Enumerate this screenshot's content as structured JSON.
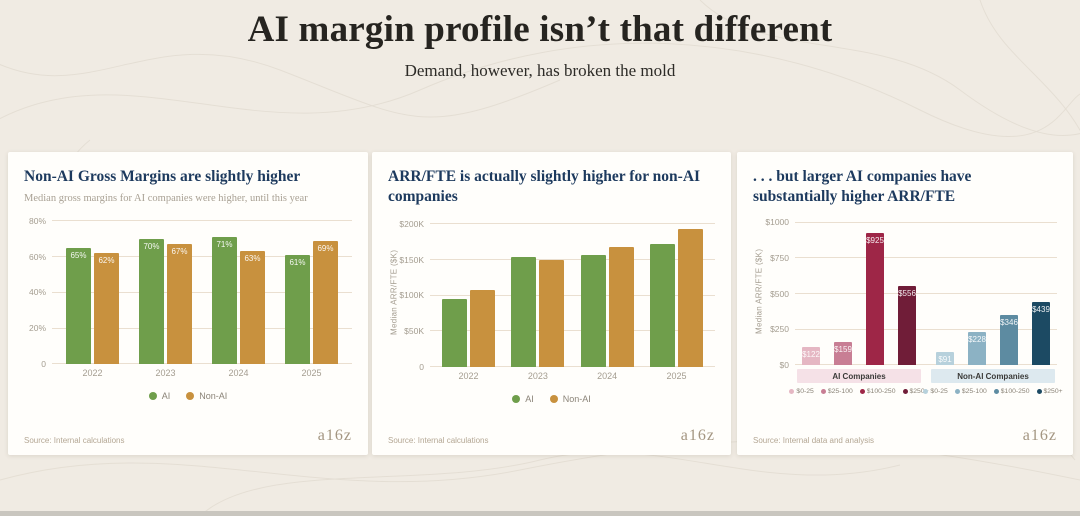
{
  "header": {
    "title": "AI margin profile isn’t that different",
    "subtitle": "Demand, however, has broken the mold"
  },
  "cards": [
    {
      "title": "Non-AI Gross Margins are slightly higher",
      "subtitle": "Median gross margins for AI companies were higher, until this year",
      "source": "Source: Internal calculations",
      "logo": "a16z"
    },
    {
      "title": "ARR/FTE is actually slightly higher for non-AI companies",
      "source": "Source: Internal calculations",
      "logo": "a16z"
    },
    {
      "title": ". . . but larger AI companies have substantially higher ARR/FTE",
      "source": "Source: Internal data and analysis",
      "logo": "a16z"
    }
  ],
  "chart_data": [
    {
      "type": "bar",
      "title": "Non-AI Gross Margins are slightly higher",
      "categories": [
        "2022",
        "2023",
        "2024",
        "2025"
      ],
      "series": [
        {
          "name": "AI",
          "color": "#6f9e4b",
          "values": [
            65,
            70,
            71,
            61
          ],
          "labels": [
            "65%",
            "70%",
            "71%",
            "61%"
          ]
        },
        {
          "name": "Non-AI",
          "color": "#c8913e",
          "values": [
            62,
            67,
            63,
            69
          ],
          "labels": [
            "62%",
            "67%",
            "63%",
            "69%"
          ]
        }
      ],
      "xlabel": "",
      "ylabel": "",
      "ylim": [
        0,
        84
      ],
      "yticks": [
        {
          "value": 80,
          "label": "80%"
        },
        {
          "value": 60,
          "label": "60%"
        },
        {
          "value": 40,
          "label": "40%"
        },
        {
          "value": 20,
          "label": "20%"
        },
        {
          "value": 0,
          "label": "0"
        }
      ],
      "grid": true,
      "legend_position": "bottom"
    },
    {
      "type": "bar",
      "title": "ARR/FTE is actually slightly higher for non-AI companies",
      "categories": [
        "2022",
        "2023",
        "2024",
        "2025"
      ],
      "series": [
        {
          "name": "AI",
          "color": "#6f9e4b",
          "values": [
            95,
            154,
            157,
            172
          ]
        },
        {
          "name": "Non-AI",
          "color": "#c8913e",
          "values": [
            108,
            150,
            168,
            193
          ]
        }
      ],
      "xlabel": "",
      "ylabel": "Median ARR/FTE ($K)",
      "ylim": [
        0,
        210
      ],
      "yticks": [
        {
          "value": 200,
          "label": "$200K"
        },
        {
          "value": 150,
          "label": "$150K"
        },
        {
          "value": 100,
          "label": "$100K"
        },
        {
          "value": 50,
          "label": "$50K"
        },
        {
          "value": 0,
          "label": "0"
        }
      ],
      "grid": true,
      "legend_position": "bottom"
    },
    {
      "type": "bar",
      "title": ". . . but larger AI companies have substantially higher ARR/FTE",
      "xlabel": "",
      "ylabel": "Median ARR/FTE ($K)",
      "ylim": [
        0,
        1040
      ],
      "yticks": [
        {
          "value": 1000,
          "label": "$1000"
        },
        {
          "value": 750,
          "label": "$750"
        },
        {
          "value": 500,
          "label": "$500"
        },
        {
          "value": 250,
          "label": "$250"
        },
        {
          "value": 0,
          "label": "$0"
        }
      ],
      "grid": true,
      "groups": [
        {
          "label": "AI Companies",
          "band_color": "#f5e1e7",
          "bars": [
            {
              "category": "$0-25",
              "value": 122,
              "label": "$122",
              "color": "#e5b7c3"
            },
            {
              "category": "$25-100",
              "value": 159,
              "label": "$159",
              "color": "#c87e94"
            },
            {
              "category": "$100-250",
              "value": 925,
              "label": "$925",
              "color": "#9e2647"
            },
            {
              "category": "$250+",
              "value": 556,
              "label": "$556",
              "color": "#701d38"
            }
          ]
        },
        {
          "label": "Non-AI Companies",
          "band_color": "#dde9ef",
          "bars": [
            {
              "category": "$0-25",
              "value": 91,
              "label": "$91",
              "color": "#b7d1dc"
            },
            {
              "category": "$25-100",
              "value": 228,
              "label": "$228",
              "color": "#8cb2c4"
            },
            {
              "category": "$100-250",
              "value": 346,
              "label": "$346",
              "color": "#5d8ba1"
            },
            {
              "category": "$250+",
              "value": 439,
              "label": "$439",
              "color": "#1c4a63"
            }
          ]
        }
      ]
    }
  ]
}
